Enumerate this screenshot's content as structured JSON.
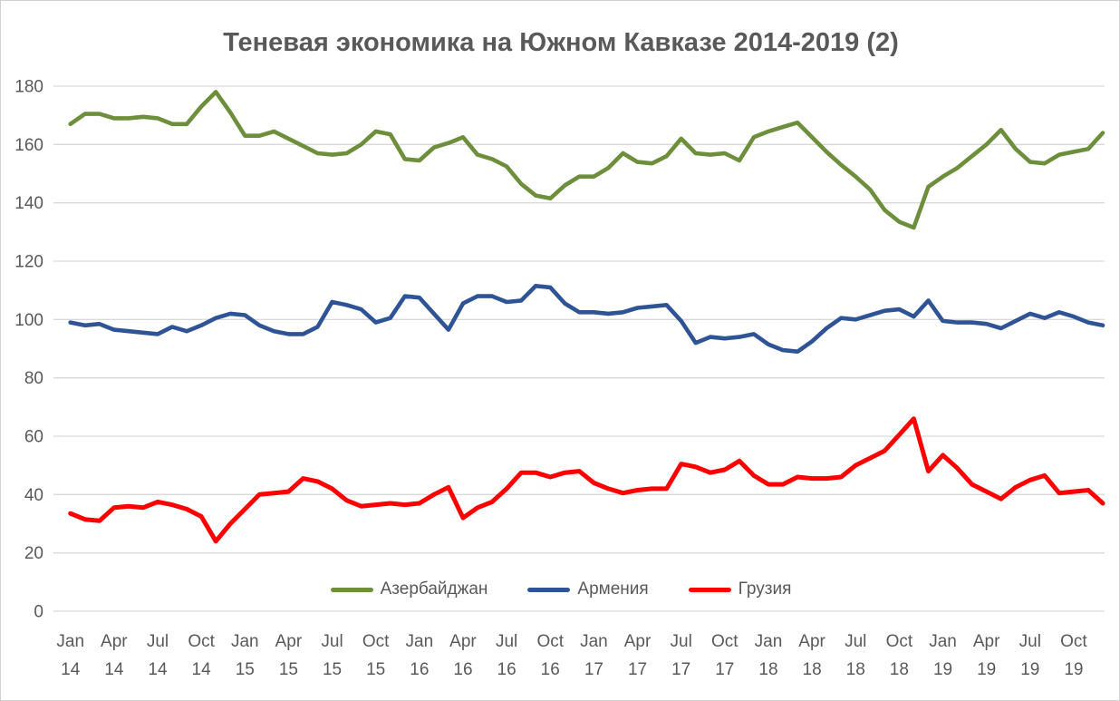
{
  "chart_data": {
    "type": "line",
    "title": "Теневая экономика на Южном Кавказе 2014-2019 (2)",
    "xlabel": "",
    "ylabel": "",
    "ylim": [
      0,
      180
    ],
    "y_ticks": [
      0,
      20,
      40,
      60,
      80,
      100,
      120,
      140,
      160,
      180
    ],
    "grid": true,
    "legend_position": "bottom-inside",
    "n_points": 72,
    "x_range": [
      "Jan 14",
      "Dec 19"
    ],
    "x_tick_every": 3,
    "x_tick_labels": [
      "Jan 14",
      "Apr 14",
      "Jul 14",
      "Oct 14",
      "Jan 15",
      "Apr 15",
      "Jul 15",
      "Oct 15",
      "Jan 16",
      "Apr 16",
      "Jul 16",
      "Oct 16",
      "Jan 17",
      "Apr 17",
      "Jul 17",
      "Oct 17",
      "Jan 18",
      "Apr 18",
      "Jul 18",
      "Oct 18",
      "Jan 19",
      "Apr 19",
      "Jul 19",
      "Oct 19"
    ],
    "colors": {
      "text": "#595959",
      "grid": "#d9d9d9",
      "background": "#ffffff"
    },
    "series": [
      {
        "name": "Азербайджан",
        "color": "#6d8f3b",
        "values": [
          167,
          170.5,
          170.5,
          169,
          169,
          169.5,
          169,
          167,
          167,
          173,
          178,
          171,
          163,
          163,
          164.5,
          162,
          159.5,
          157,
          156.5,
          157,
          160,
          164.5,
          163.5,
          155,
          154.5,
          159,
          160.5,
          162.5,
          156.5,
          155,
          152.5,
          146.5,
          142.5,
          141.5,
          146,
          149,
          149,
          152,
          157,
          154,
          153.5,
          156,
          162,
          157,
          156.5,
          157,
          154.5,
          162.5,
          164.5,
          166,
          167.5,
          162.5,
          157.5,
          153,
          149,
          144.5,
          137.5,
          133.5,
          131.5,
          145.5,
          149,
          152,
          156,
          160,
          165,
          158.5,
          154,
          153.5,
          156.5,
          157.5,
          158.5,
          164
        ]
      },
      {
        "name": "Армения",
        "color": "#2f5496",
        "values": [
          99,
          98,
          98.5,
          96.5,
          96,
          95.5,
          95,
          97.5,
          96,
          98,
          100.5,
          102,
          101.5,
          98,
          96,
          95,
          95,
          97.5,
          106,
          105,
          103.5,
          99,
          100.5,
          108,
          107.5,
          102,
          96.5,
          105.5,
          108,
          108,
          106,
          106.5,
          111.5,
          111,
          105.5,
          102.5,
          102.5,
          102,
          102.5,
          104,
          104.5,
          105,
          99.5,
          92,
          94,
          93.5,
          94,
          95,
          91.5,
          89.5,
          89,
          92.5,
          97,
          100.5,
          100,
          101.5,
          103,
          103.5,
          101,
          106.5,
          99.5,
          99,
          99,
          98.5,
          97,
          99.5,
          102,
          100.5,
          102.5,
          101,
          99,
          98
        ]
      },
      {
        "name": "Грузия",
        "color": "#ff0000",
        "values": [
          33.5,
          31.5,
          31,
          35.5,
          36,
          35.5,
          37.5,
          36.5,
          35,
          32.5,
          24,
          30,
          35,
          40,
          40.5,
          41,
          45.5,
          44.5,
          42,
          38,
          36,
          36.5,
          37,
          36.5,
          37,
          40,
          42.5,
          32,
          35.5,
          37.5,
          42,
          47.5,
          47.5,
          46,
          47.5,
          48,
          44,
          42,
          40.5,
          41.5,
          42,
          42,
          50.5,
          49.5,
          47.5,
          48.5,
          51.5,
          46.5,
          43.5,
          43.5,
          46,
          45.5,
          45.5,
          46,
          50,
          52.5,
          55,
          60.5,
          66,
          48,
          53.5,
          49,
          43.5,
          41,
          38.5,
          42.5,
          45,
          46.5,
          40.5,
          41,
          41.5,
          37
        ]
      }
    ]
  }
}
